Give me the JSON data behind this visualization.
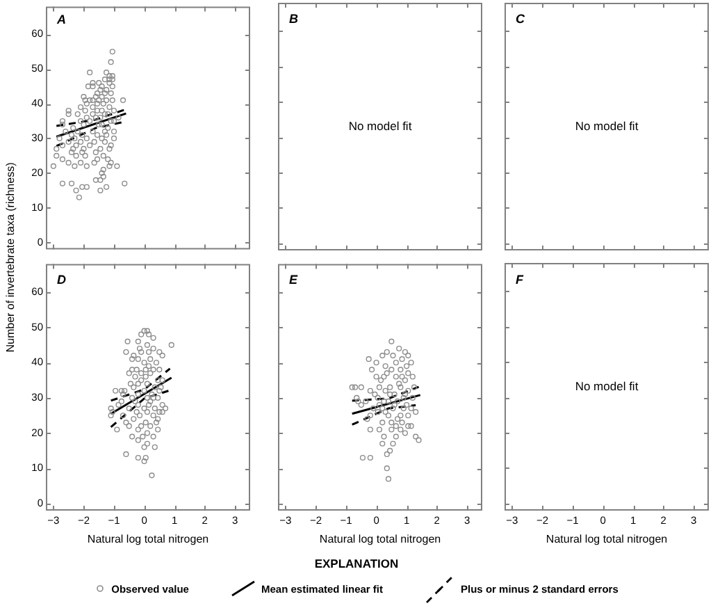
{
  "chart_data": [
    {
      "type": "scatter",
      "title": "A",
      "ylabel": "Number of invertebrate taxa (richness)",
      "xlim": [
        -3.25,
        3.5
      ],
      "ylim": [
        -2,
        68
      ],
      "xticks": [
        -3,
        -2,
        -1,
        0,
        1,
        2,
        3
      ],
      "yticks": [
        0,
        10,
        20,
        30,
        40,
        50,
        60
      ],
      "tick_labels": "y",
      "series": [
        {
          "type": "scatter",
          "color": "#8c8c8c",
          "marker": "circle",
          "x": [
            -1.05,
            -1.1,
            -1.8,
            -1.25,
            -1.15,
            -1.05,
            -1.3,
            -1.15,
            -1.05,
            -1.7,
            -1.5,
            -1.15,
            -1.85,
            -1.7,
            -1.4,
            -1.05,
            -1.45,
            -1.25,
            -1.55,
            -1.3,
            -1.1,
            -2.0,
            -1.6,
            -1.4,
            -1.95,
            -1.8,
            -1.7,
            -1.25,
            -1.05,
            -1.5,
            -0.7,
            -1.9,
            -1.55,
            -1.35,
            -1.15,
            -2.1,
            -1.7,
            -1.4,
            -2.5,
            -1.95,
            -1.55,
            -1.3,
            -1.0,
            -2.5,
            -2.2,
            -1.7,
            -1.45,
            -1.2,
            -1.9,
            -1.6,
            -1.1,
            -0.85,
            -2.7,
            -2.1,
            -1.8,
            -1.4,
            -1.0,
            -2.7,
            -2.35,
            -2.0,
            -1.5,
            -1.2,
            -2.6,
            -2.2,
            -1.7,
            -1.3,
            -1.0,
            -2.4,
            -2.05,
            -1.55,
            -1.25,
            -2.8,
            -2.3,
            -1.9,
            -1.4,
            -1.0,
            -2.5,
            -2.1,
            -1.65,
            -1.3,
            -2.7,
            -2.25,
            -1.8,
            -1.1,
            -2.9,
            -2.35,
            -2.0,
            -1.45,
            -1.15,
            -2.4,
            -2.05,
            -1.6,
            -2.25,
            -1.95,
            -1.35,
            -2.9,
            -2.7,
            -1.55,
            -1.2,
            -2.5,
            -2.1,
            -1.65,
            -1.1,
            -3.0,
            -2.3,
            -1.9,
            -1.15,
            -0.9,
            -1.35,
            -1.4,
            -1.35,
            -1.45,
            -1.6,
            -2.7,
            -2.4,
            -2.05,
            -0.65,
            -1.9,
            -1.25,
            -2.25,
            -1.45,
            -2.15
          ],
          "values": [
            55,
            52,
            49,
            49,
            48,
            48,
            47,
            47,
            47,
            46,
            46,
            46,
            45,
            45,
            45,
            45,
            44,
            44,
            43,
            43,
            43,
            42,
            42,
            42,
            41,
            41,
            41,
            41,
            41,
            41,
            41,
            40,
            40,
            40,
            39,
            39,
            39,
            38,
            38,
            38,
            38,
            37,
            38,
            37,
            37,
            37,
            36,
            37,
            36,
            36,
            35,
            36,
            35,
            35,
            35,
            34,
            35,
            34,
            33,
            34,
            34,
            33,
            32,
            32,
            32,
            32,
            32,
            31,
            31,
            31,
            31,
            30,
            30,
            30,
            30,
            30,
            29,
            29,
            29,
            29,
            28,
            28,
            28,
            28,
            27,
            27,
            27,
            27,
            27,
            26,
            26,
            26,
            25,
            25,
            25,
            25,
            24,
            24,
            24,
            23,
            23,
            23,
            23,
            22,
            22,
            22,
            22,
            22,
            21,
            20,
            19,
            18,
            18,
            17,
            17,
            16,
            17,
            16,
            16,
            15,
            15,
            13
          ]
        },
        {
          "type": "line",
          "color": "#000000",
          "x": [
            -2.9,
            -0.6
          ],
          "values": [
            30.5,
            37.2
          ]
        },
        {
          "type": "line",
          "color": "#000000",
          "line_style": "dashed",
          "x": [
            -2.9,
            -1.6,
            -0.6
          ],
          "values": [
            33.6,
            35.4,
            38.4
          ]
        },
        {
          "type": "line",
          "color": "#000000",
          "line_style": "dashed",
          "x": [
            -2.9,
            -1.6,
            -0.75
          ],
          "values": [
            27.8,
            33.0,
            34.6
          ]
        }
      ]
    },
    {
      "type": "scatter",
      "xlim": [
        -3.25,
        3.5
      ],
      "ylim": [
        -2,
        68
      ],
      "xticks": [
        -3,
        -2,
        -1,
        0,
        1,
        2,
        3
      ],
      "yticks": [
        0,
        10,
        20,
        30,
        40,
        50,
        60
      ],
      "tick_labels": false,
      "annotations": [
        "B",
        "No model fit"
      ]
    },
    {
      "type": "scatter",
      "xlim": [
        -3.25,
        3.5
      ],
      "ylim": [
        -2,
        68
      ],
      "xticks": [
        -3,
        -2,
        -1,
        0,
        1,
        2,
        3
      ],
      "yticks": [
        0,
        10,
        20,
        30,
        40,
        50,
        60
      ],
      "tick_labels": false,
      "annotations": [
        "C",
        "No model fit"
      ]
    },
    {
      "type": "scatter",
      "title": "D",
      "xlabel": "Natural log total nitrogen",
      "xlim": [
        -3.25,
        3.5
      ],
      "ylim": [
        -2,
        68
      ],
      "xticks": [
        {
          "value": -3,
          "label": "−3"
        },
        {
          "value": -2,
          "label": "−2"
        },
        {
          "value": -1,
          "label": "−1"
        },
        0,
        1,
        2,
        3
      ],
      "yticks": [
        0,
        10,
        20,
        30,
        40,
        50,
        60
      ],
      "series": [
        {
          "type": "scatter",
          "color": "#8c8c8c",
          "marker": "circle",
          "x": [
            0.1,
            0,
            0.15,
            -0.1,
            0.3,
            -0.55,
            0.9,
            -0.2,
            0.1,
            0.3,
            -0.6,
            -0.35,
            -0.1,
            0.15,
            0.5,
            0.6,
            -0.4,
            -0.2,
            0,
            0.2,
            0.4,
            -0.4,
            -0.25,
            0.05,
            0.3,
            0.5,
            -0.5,
            -0.1,
            0.2,
            -0.3,
            0.05,
            0.45,
            -0.45,
            -0.2,
            0.1,
            0.35,
            -0.75,
            -0.35,
            0,
            0.5,
            -0.95,
            -0.65,
            -0.2,
            0.25,
            -0.4,
            0.1,
            0.45,
            -0.75,
            -0.2,
            0.15,
            0.6,
            -1.1,
            -0.5,
            0,
            0.35,
            -1.05,
            -0.25,
            0.1,
            0.5,
            -0.7,
            -0.15,
            0.3,
            -1.1,
            -0.35,
            0.05,
            0.45,
            -0.5,
            -0.1,
            0.2,
            -0.9,
            -0.2,
            0.1,
            0.45,
            -0.4,
            -0.05,
            0.3,
            -0.2,
            0.1,
            0.35,
            0,
            -0.6,
            -0.2,
            0.05,
            0,
            0.25,
            -0.7,
            0.6,
            0.55,
            -0.3,
            0.2,
            0.4,
            -0.6,
            0.6,
            0.7,
            -0.85,
            0.3,
            -0.1,
            0.15,
            -0.15
          ],
          "values": [
            49,
            49,
            48,
            48,
            47,
            46,
            45,
            46,
            45,
            44,
            43,
            42,
            43,
            43,
            43,
            42,
            41,
            41,
            40,
            41,
            40,
            38,
            38,
            38,
            38,
            38,
            37,
            37,
            37,
            36,
            36,
            35,
            34,
            34,
            34,
            33,
            32,
            33,
            32,
            32,
            32,
            32,
            31,
            31,
            30,
            30,
            30,
            29,
            28,
            28,
            28,
            27,
            27,
            27,
            27,
            26,
            26,
            26,
            26,
            25,
            25,
            25,
            25,
            24,
            23,
            24,
            22,
            22,
            22,
            21,
            21,
            20,
            21,
            19,
            19,
            19,
            18,
            17,
            16,
            16,
            14,
            13,
            13,
            12,
            8,
            31,
            35,
            33,
            29,
            29,
            23,
            23,
            26,
            27,
            28,
            30,
            35,
            39,
            44
          ]
        },
        {
          "type": "line",
          "color": "#000000",
          "x": [
            -1.1,
            0.9
          ],
          "values": [
            25.5,
            35.7
          ]
        },
        {
          "type": "line",
          "color": "#000000",
          "line_style": "dashed",
          "x": [
            -1.1,
            0,
            0.85
          ],
          "values": [
            29.2,
            32.4,
            38.3
          ]
        },
        {
          "type": "line",
          "color": "#000000",
          "line_style": "dashed",
          "x": [
            -1.1,
            0,
            0.8
          ],
          "values": [
            21.7,
            29.8,
            32.0
          ]
        }
      ]
    },
    {
      "type": "scatter",
      "title": "E",
      "xlabel": "Natural log total nitrogen",
      "xlim": [
        -3.25,
        3.5
      ],
      "ylim": [
        -2,
        68
      ],
      "xticks": [
        {
          "value": -3,
          "label": "−3"
        },
        {
          "value": -2,
          "label": "−2"
        },
        {
          "value": -1,
          "label": "−1"
        },
        0,
        1,
        2,
        3
      ],
      "yticks": [
        0,
        10,
        20,
        30,
        40,
        50,
        60
      ],
      "tick_labels": "x",
      "legend": "bottom",
      "legend_title": "EXPLANATION",
      "series": [
        {
          "type": "scatter",
          "name": "Observed value",
          "color": "#8c8c8c",
          "marker": "circle",
          "x": [
            0.5,
            0.75,
            0.35,
            0.95,
            0.55,
            1.05,
            -0.25,
            0.2,
            0.85,
            0,
            0.3,
            0.65,
            1.0,
            1.15,
            -0.15,
            0.5,
            0.8,
            1.05,
            0,
            0.25,
            0.65,
            0.95,
            1.2,
            -0.7,
            -0.5,
            0.1,
            0.45,
            0.8,
            1.05,
            -0.2,
            0.3,
            0.6,
            0.95,
            -0.65,
            -0.35,
            0.05,
            0.4,
            0.7,
            1.2,
            -0.5,
            -0.1,
            0.2,
            0.55,
            0.9,
            1.15,
            0.05,
            0.4,
            0.8,
            1.05,
            -0.2,
            0.2,
            0.5,
            0.85,
            1.15,
            -0.2,
            0.1,
            0.5,
            0.8,
            1.05,
            0.25,
            0.65,
            0.95,
            1.3,
            1.4,
            0.2,
            0.55,
            0.45,
            0.35,
            -0.45,
            -0.2,
            0.35,
            0.4,
            0.15,
            -0.8,
            0.35,
            0.75,
            -0.05,
            0.6,
            0.3,
            0.7,
            1.3,
            -0.3,
            0.9,
            1.25,
            0.45,
            0.1,
            0.65,
            0.85,
            -0.6,
            0.25,
            1.0
          ],
          "values": [
            46,
            44,
            43,
            43,
            42,
            42,
            41,
            42,
            41,
            40,
            39,
            40,
            39,
            40,
            38,
            38,
            38,
            37,
            36,
            36,
            36,
            35,
            36,
            33,
            33,
            33,
            33,
            33,
            32,
            32,
            32,
            31,
            31,
            30,
            29,
            30,
            29,
            29,
            30,
            28,
            27,
            27,
            27,
            27,
            27,
            26,
            25,
            25,
            25,
            25,
            23,
            23,
            23,
            22,
            21,
            21,
            21,
            21,
            22,
            19,
            19,
            20,
            19,
            18,
            17,
            17,
            15,
            14,
            13,
            13,
            10,
            7,
            35,
            33,
            37,
            34,
            31,
            28,
            26,
            24,
            26,
            24,
            30,
            33,
            31,
            28,
            22,
            36,
            29,
            29,
            28
          ]
        },
        {
          "type": "line",
          "name": "Mean estimated linear fit",
          "color": "#000000",
          "x": [
            -0.8,
            1.45
          ],
          "values": [
            25.5,
            30.8
          ]
        },
        {
          "type": "line",
          "name": "Plus or minus 2 standard errors",
          "color": "#000000",
          "line_style": "dashed",
          "x": [
            -0.8,
            0.4,
            1.4
          ],
          "values": [
            29.2,
            29.8,
            33.1
          ]
        },
        {
          "type": "line",
          "color": "#000000",
          "line_style": "dashed",
          "x": [
            -0.8,
            0.4,
            1.3
          ],
          "values": [
            22.4,
            27.0,
            27.9
          ]
        }
      ]
    },
    {
      "type": "scatter",
      "title": "F",
      "xlabel": "Natural log total nitrogen",
      "xlim": [
        -3.25,
        3.5
      ],
      "ylim": [
        -2,
        68
      ],
      "xticks": [
        {
          "value": -3,
          "label": "−3"
        },
        {
          "value": -2,
          "label": "−2"
        },
        {
          "value": -1,
          "label": "−1"
        },
        0,
        1,
        2,
        3
      ],
      "yticks": [
        0,
        10,
        20,
        30,
        40,
        50,
        60
      ],
      "tick_labels": "x",
      "annotations": [
        "No model fit"
      ]
    }
  ]
}
